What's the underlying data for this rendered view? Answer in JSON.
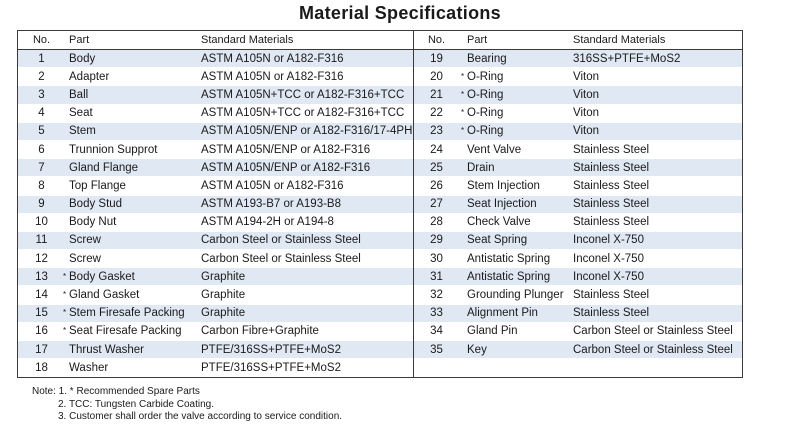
{
  "title": "Material Specifications",
  "headers": {
    "no": "No.",
    "part": "Part",
    "material": "Standard Materials"
  },
  "left_rows": [
    {
      "no": "1",
      "star": "",
      "part": "Body",
      "material": "ASTM A105N or A182-F316"
    },
    {
      "no": "2",
      "star": "",
      "part": "Adapter",
      "material": "ASTM A105N or A182-F316"
    },
    {
      "no": "3",
      "star": "",
      "part": "Ball",
      "material": "ASTM A105N+TCC or A182-F316+TCC"
    },
    {
      "no": "4",
      "star": "",
      "part": "Seat",
      "material": "ASTM A105N+TCC or A182-F316+TCC"
    },
    {
      "no": "5",
      "star": "",
      "part": "Stem",
      "material": "ASTM A105N/ENP or A182-F316/17-4PH"
    },
    {
      "no": "6",
      "star": "",
      "part": "Trunnion Supprot",
      "material": "ASTM A105N/ENP or A182-F316"
    },
    {
      "no": "7",
      "star": "",
      "part": "Gland Flange",
      "material": "ASTM A105N/ENP or A182-F316"
    },
    {
      "no": "8",
      "star": "",
      "part": "Top Flange",
      "material": "ASTM A105N or A182-F316"
    },
    {
      "no": "9",
      "star": "",
      "part": "Body Stud",
      "material": "ASTM A193-B7 or A193-B8"
    },
    {
      "no": "10",
      "star": "",
      "part": "Body Nut",
      "material": "ASTM A194-2H or A194-8"
    },
    {
      "no": "11",
      "star": "",
      "part": "Screw",
      "material": "Carbon Steel or Stainless Steel"
    },
    {
      "no": "12",
      "star": "",
      "part": "Screw",
      "material": "Carbon Steel or Stainless Steel"
    },
    {
      "no": "13",
      "star": "*",
      "part": "Body Gasket",
      "material": "Graphite"
    },
    {
      "no": "14",
      "star": "*",
      "part": "Gland Gasket",
      "material": "Graphite"
    },
    {
      "no": "15",
      "star": "*",
      "part": "Stem Firesafe Packing",
      "material": "Graphite"
    },
    {
      "no": "16",
      "star": "*",
      "part": "Seat Firesafe Packing",
      "material": "Carbon Fibre+Graphite"
    },
    {
      "no": "17",
      "star": "",
      "part": "Thrust Washer",
      "material": "PTFE/316SS+PTFE+MoS2"
    },
    {
      "no": "18",
      "star": "",
      "part": "Washer",
      "material": "PTFE/316SS+PTFE+MoS2"
    }
  ],
  "right_rows": [
    {
      "no": "19",
      "star": "",
      "part": "Bearing",
      "material": "316SS+PTFE+MoS2"
    },
    {
      "no": "20",
      "star": "*",
      "part": "O-Ring",
      "material": "Viton"
    },
    {
      "no": "21",
      "star": "*",
      "part": "O-Ring",
      "material": "Viton"
    },
    {
      "no": "22",
      "star": "*",
      "part": "O-Ring",
      "material": "Viton"
    },
    {
      "no": "23",
      "star": "*",
      "part": "O-Ring",
      "material": "Viton"
    },
    {
      "no": "24",
      "star": "",
      "part": "Vent Valve",
      "material": "Stainless Steel"
    },
    {
      "no": "25",
      "star": "",
      "part": "Drain",
      "material": "Stainless Steel"
    },
    {
      "no": "26",
      "star": "",
      "part": "Stem Injection",
      "material": "Stainless Steel"
    },
    {
      "no": "27",
      "star": "",
      "part": "Seat Injection",
      "material": "Stainless Steel"
    },
    {
      "no": "28",
      "star": "",
      "part": "Check Valve",
      "material": "Stainless Steel"
    },
    {
      "no": "29",
      "star": "",
      "part": "Seat Spring",
      "material": "Inconel X-750"
    },
    {
      "no": "30",
      "star": "",
      "part": "Antistatic Spring",
      "material": "Inconel X-750"
    },
    {
      "no": "31",
      "star": "",
      "part": "Antistatic Spring",
      "material": "Inconel X-750"
    },
    {
      "no": "32",
      "star": "",
      "part": "Grounding Plunger",
      "material": "Stainless Steel"
    },
    {
      "no": "33",
      "star": "",
      "part": "Alignment Pin",
      "material": "Stainless Steel"
    },
    {
      "no": "34",
      "star": "",
      "part": "Gland Pin",
      "material": "Carbon Steel or Stainless Steel"
    },
    {
      "no": "35",
      "star": "",
      "part": "Key",
      "material": "Carbon Steel or Stainless Steel"
    },
    {
      "no": "",
      "star": "",
      "part": "",
      "material": ""
    }
  ],
  "notes": {
    "line1": "Note: 1. * Recommended Spare Parts",
    "line2": "2. TCC: Tungsten Carbide Coating.",
    "line3": "3. Customer shall order the valve according to service condition."
  },
  "colors": {
    "row_shade": "#dfe8f3",
    "border": "#3a3a3a"
  }
}
